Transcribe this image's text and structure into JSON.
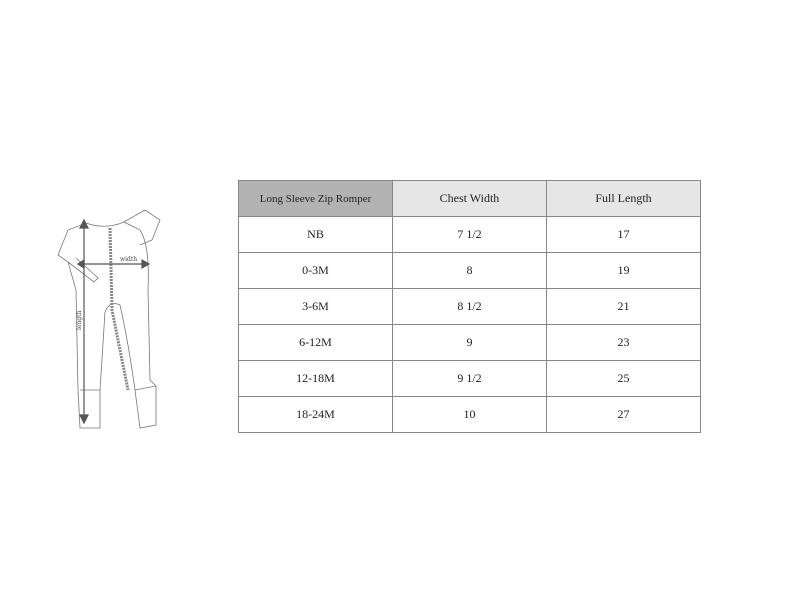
{
  "illustration": {
    "width_label": "width",
    "length_label": "length"
  },
  "table": {
    "headers": [
      "Long Sleeve Zip Romper",
      "Chest Width",
      "Full Length"
    ],
    "rows": [
      [
        "NB",
        "7 1/2",
        "17"
      ],
      [
        "0-3M",
        "8",
        "19"
      ],
      [
        "3-6M",
        "8 1/2",
        "21"
      ],
      [
        "6-12M",
        "9",
        "23"
      ],
      [
        "12-18M",
        "9 1/2",
        "25"
      ],
      [
        "18-24M",
        "10",
        "27"
      ]
    ]
  }
}
